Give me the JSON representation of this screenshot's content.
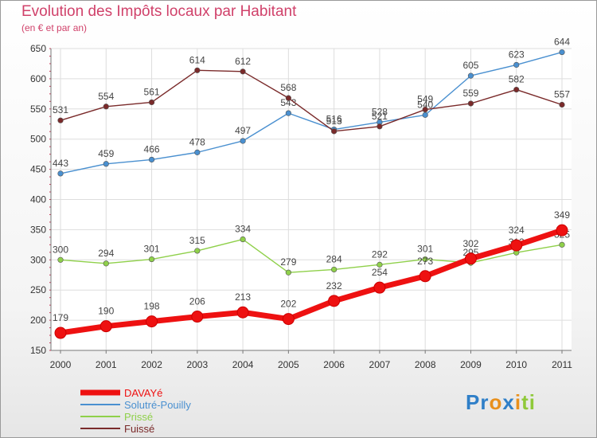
{
  "title": "Evolution des Impôts locaux par Habitant",
  "subtitle": "(en € et par an)",
  "logo": {
    "parts": [
      "Pr",
      "o",
      "x",
      "i",
      "ti"
    ],
    "colors": [
      "#2f7fc8",
      "#e8901d",
      "#2f7fc8",
      "#e8901d",
      "#8fc93a"
    ]
  },
  "chart_data": {
    "type": "line",
    "x": [
      "2000",
      "2001",
      "2002",
      "2003",
      "2004",
      "2005",
      "2006",
      "2007",
      "2008",
      "2009",
      "2010",
      "2011"
    ],
    "y_ticks": [
      "150",
      "200",
      "250",
      "300",
      "350",
      "400",
      "450",
      "500",
      "550",
      "600",
      "650"
    ],
    "ylim": [
      150,
      650
    ],
    "grid": true,
    "legend_position": "bottom-left",
    "series": [
      {
        "name": "DAVAYé",
        "color": "#ee1111",
        "values": [
          179,
          190,
          198,
          206,
          213,
          202,
          232,
          254,
          273,
          302,
          324,
          349
        ]
      },
      {
        "name": "Solutré-Pouilly",
        "color": "#4a90d0",
        "values": [
          443,
          459,
          466,
          478,
          497,
          543,
          516,
          528,
          540,
          605,
          623,
          644
        ]
      },
      {
        "name": "Prissé",
        "color": "#8fd04a",
        "values": [
          300,
          294,
          301,
          315,
          334,
          279,
          284,
          292,
          301,
          295,
          312,
          325
        ]
      },
      {
        "name": "Fuissé",
        "color": "#7a2a2a",
        "values": [
          531,
          554,
          561,
          614,
          612,
          568,
          513,
          521,
          549,
          559,
          582,
          557
        ]
      }
    ]
  }
}
